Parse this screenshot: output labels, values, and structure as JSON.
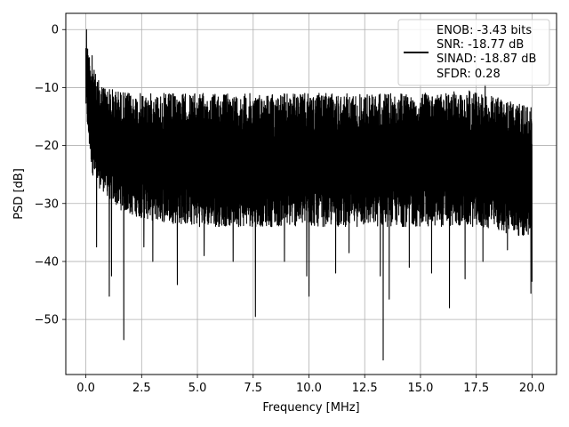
{
  "chart_data": {
    "type": "line",
    "title": "",
    "xlabel": "Frequency [MHz]",
    "ylabel": "PSD [dB]",
    "xlim": [
      -0.9,
      21.1
    ],
    "ylim": [
      -59.5,
      2.8
    ],
    "xticks": [
      0.0,
      2.5,
      5.0,
      7.5,
      10.0,
      12.5,
      15.0,
      17.5,
      20.0
    ],
    "xtick_labels": [
      "0.0",
      "2.5",
      "5.0",
      "7.5",
      "10.0",
      "12.5",
      "15.0",
      "17.5",
      "20.0"
    ],
    "yticks": [
      0,
      -10,
      -20,
      -30,
      -40,
      -50
    ],
    "ytick_labels": [
      "0",
      "−10",
      "−20",
      "−30",
      "−40",
      "−50"
    ],
    "grid": true,
    "legend_position": "top-right",
    "legend": [
      "ENOB: -3.43 bits",
      "SNR: -18.77 dB",
      "SINAD: -18.87 dB",
      "SFDR: 0.28"
    ],
    "series": [
      {
        "color": "#000000",
        "envelope": {
          "x": [
            0.0,
            0.05,
            0.1,
            0.2,
            0.3,
            0.5,
            0.8,
            1.0,
            1.5,
            2.0,
            3.0,
            5.0,
            7.5,
            10.0,
            12.5,
            15.0,
            17.5,
            20.0
          ],
          "upper": [
            0.0,
            -1.0,
            -3.0,
            -4.5,
            -6.0,
            -8.5,
            -9.5,
            -10.0,
            -10.5,
            -11.0,
            -11.0,
            -11.0,
            -11.0,
            -11.0,
            -11.0,
            -11.0,
            -10.5,
            -13.5
          ],
          "lower": [
            -14.0,
            -16.0,
            -19.0,
            -22.0,
            -25.0,
            -27.0,
            -28.0,
            -29.0,
            -31.0,
            -32.0,
            -33.0,
            -34.0,
            -34.0,
            -34.0,
            -34.0,
            -34.0,
            -34.0,
            -36.0
          ]
        },
        "spikes": [
          {
            "x": 0.03,
            "y": 0.0
          },
          {
            "x": 0.1,
            "y": -4.5
          },
          {
            "x": 0.28,
            "y": -4.5
          },
          {
            "x": 0.48,
            "y": -37.5
          },
          {
            "x": 1.05,
            "y": -46.0
          },
          {
            "x": 1.15,
            "y": -42.5
          },
          {
            "x": 1.7,
            "y": -53.5
          },
          {
            "x": 2.6,
            "y": -37.5
          },
          {
            "x": 3.0,
            "y": -40.0
          },
          {
            "x": 4.1,
            "y": -44.0
          },
          {
            "x": 5.3,
            "y": -39.0
          },
          {
            "x": 6.6,
            "y": -40.0
          },
          {
            "x": 7.6,
            "y": -49.5
          },
          {
            "x": 8.9,
            "y": -40.0
          },
          {
            "x": 9.9,
            "y": -42.5
          },
          {
            "x": 10.0,
            "y": -46.0
          },
          {
            "x": 11.2,
            "y": -42.0
          },
          {
            "x": 11.8,
            "y": -38.5
          },
          {
            "x": 13.2,
            "y": -42.5
          },
          {
            "x": 13.33,
            "y": -57.0
          },
          {
            "x": 13.6,
            "y": -46.5
          },
          {
            "x": 14.5,
            "y": -41.0
          },
          {
            "x": 15.5,
            "y": -42.0
          },
          {
            "x": 16.3,
            "y": -48.0
          },
          {
            "x": 17.0,
            "y": -43.0
          },
          {
            "x": 17.8,
            "y": -40.0
          },
          {
            "x": 17.9,
            "y": -9.5
          },
          {
            "x": 18.9,
            "y": -38.0
          },
          {
            "x": 19.95,
            "y": -45.5
          },
          {
            "x": 20.0,
            "y": -43.5
          }
        ],
        "points": 4000
      }
    ]
  }
}
